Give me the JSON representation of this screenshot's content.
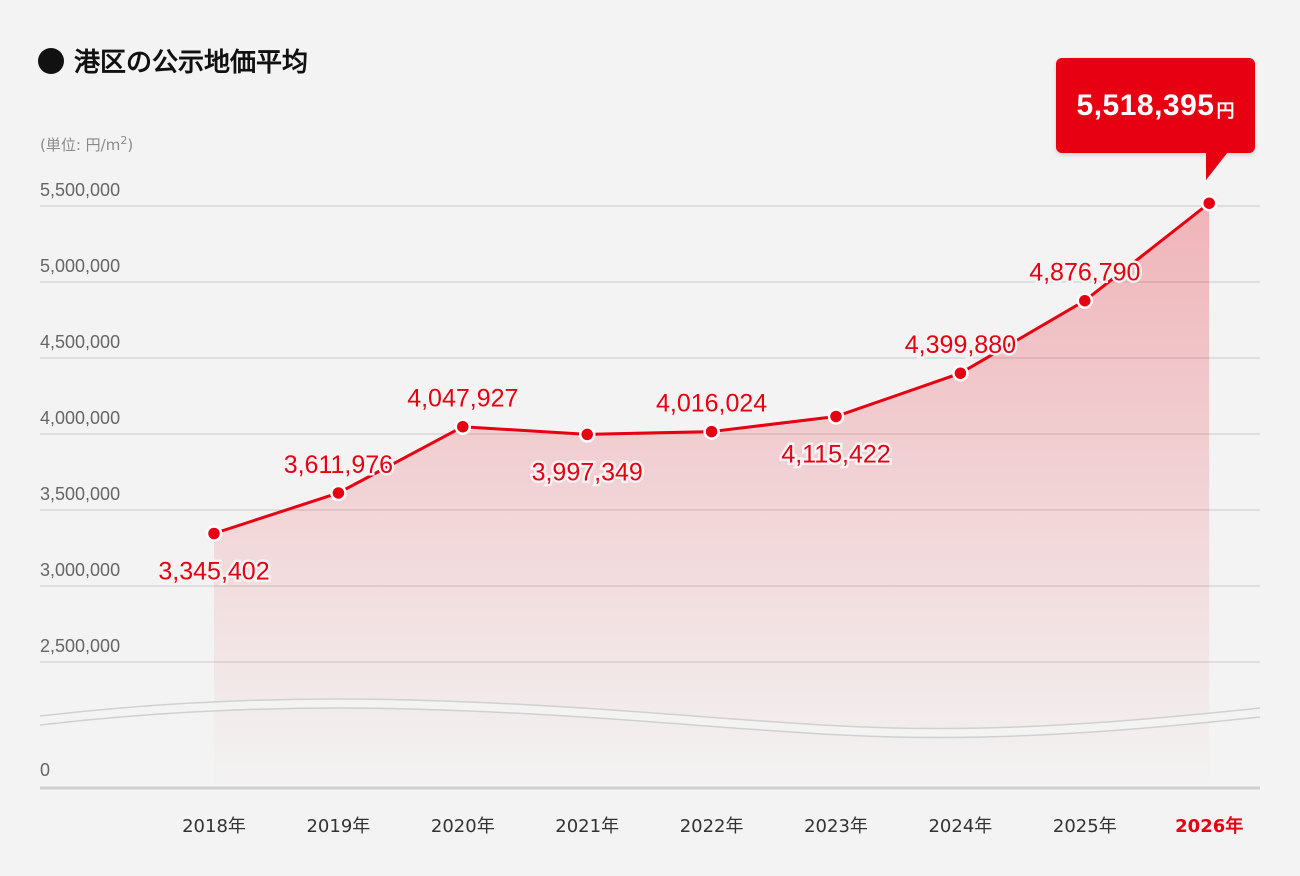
{
  "title": "港区の公示地価平均",
  "unit_label": "(単位: 円/m",
  "unit_sup": "2",
  "unit_close": ")",
  "callout": {
    "value": "5,518,395",
    "unit": "円"
  },
  "colors": {
    "accent": "#e60012",
    "axis_text": "#666666",
    "grid": "#d2d2d2",
    "background": "#f3f3f3"
  },
  "chart_data": {
    "type": "line",
    "title": "港区の公示地価平均",
    "ylabel": "(単位: 円/m2)",
    "ylim": [
      0,
      5500000
    ],
    "axis_break": true,
    "grid": true,
    "categories": [
      "2018年",
      "2019年",
      "2020年",
      "2021年",
      "2022年",
      "2023年",
      "2024年",
      "2025年",
      "2026年"
    ],
    "highlight_category": "2026年",
    "yticks": [
      {
        "value": 5500000,
        "label": "5,500,000"
      },
      {
        "value": 5000000,
        "label": "5,000,000"
      },
      {
        "value": 4500000,
        "label": "4,500,000"
      },
      {
        "value": 4000000,
        "label": "4,000,000"
      },
      {
        "value": 3500000,
        "label": "3,500,000"
      },
      {
        "value": 3000000,
        "label": "3,000,000"
      },
      {
        "value": 2500000,
        "label": "2,500,000"
      },
      {
        "value": 0,
        "label": "0"
      }
    ],
    "values": [
      3345402,
      3611976,
      4047927,
      3997349,
      4016024,
      4115422,
      4399880,
      4876790,
      5518395
    ],
    "data_labels": [
      "3,345,402",
      "3,611,976",
      "4,047,927",
      "3,997,349",
      "4,016,024",
      "4,115,422",
      "4,399,880",
      "4,876,790",
      "5,518,395"
    ],
    "label_positions": [
      "below",
      "above",
      "above",
      "below",
      "above",
      "below",
      "above",
      "above",
      "callout"
    ]
  }
}
